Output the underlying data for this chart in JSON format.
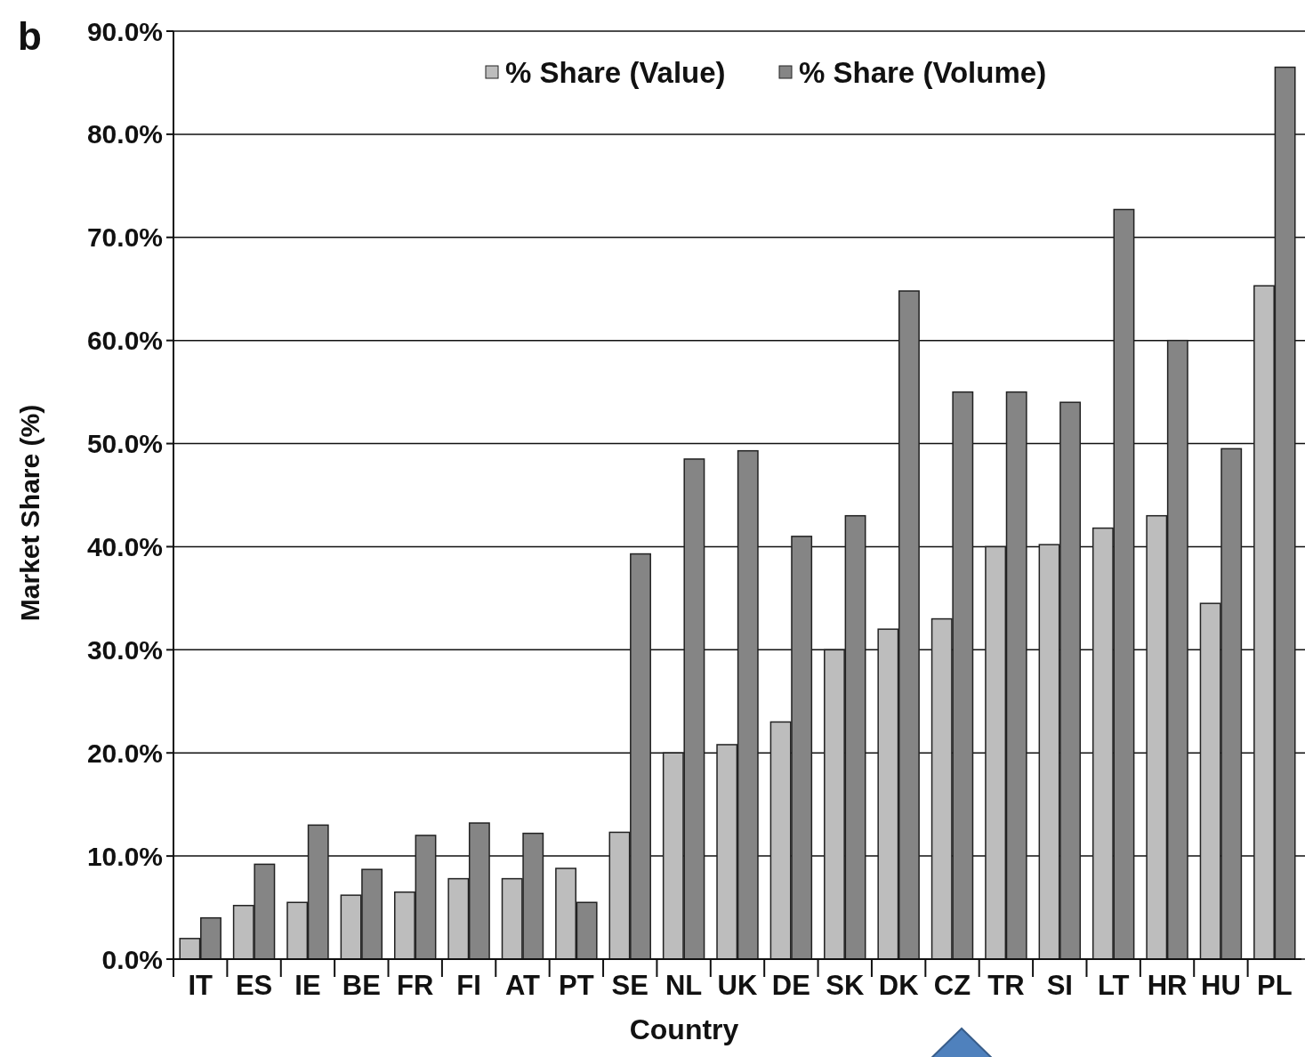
{
  "chart_data": {
    "type": "bar",
    "xlabel": "Country",
    "ylabel": "Market Share (%)",
    "annotations": [
      "b"
    ],
    "categories": [
      "IT",
      "ES",
      "IE",
      "BE",
      "FR",
      "FI",
      "AT",
      "PT",
      "SE",
      "NL",
      "UK",
      "DE",
      "SK",
      "DK",
      "CZ",
      "TR",
      "SI",
      "LT",
      "HR",
      "HU",
      "PL"
    ],
    "series": [
      {
        "name": "% Share (Value)",
        "color": "#bdbdbd",
        "values": [
          2,
          5.2,
          5.5,
          6.2,
          6.5,
          7.8,
          7.8,
          8.8,
          12.3,
          20,
          20.8,
          23,
          30,
          32,
          33,
          40,
          40.2,
          41.8,
          43,
          34.5,
          65.3
        ]
      },
      {
        "name": "% Share (Volume)",
        "color": "#858585",
        "values": [
          4,
          9.2,
          13,
          8.7,
          12,
          13.2,
          12.2,
          5.5,
          39.3,
          48.5,
          49.3,
          41,
          43,
          64.8,
          55,
          55,
          54,
          72.7,
          60,
          49.5,
          86.5
        ]
      }
    ],
    "ylim": [
      0,
      90
    ],
    "yticks": [
      {
        "value": 0,
        "label": "0.0%"
      },
      {
        "value": 10,
        "label": "10.0%"
      },
      {
        "value": 20,
        "label": "20.0%"
      },
      {
        "value": 30,
        "label": "30.0%"
      },
      {
        "value": 40,
        "label": "40.0%"
      },
      {
        "value": 50,
        "label": "50.0%"
      },
      {
        "value": 60,
        "label": "60.0%"
      },
      {
        "value": 70,
        "label": "70.0%"
      },
      {
        "value": 80,
        "label": "80.0%"
      },
      {
        "value": 90,
        "label": "90.0%"
      }
    ],
    "grid": "y",
    "legend": "top"
  }
}
